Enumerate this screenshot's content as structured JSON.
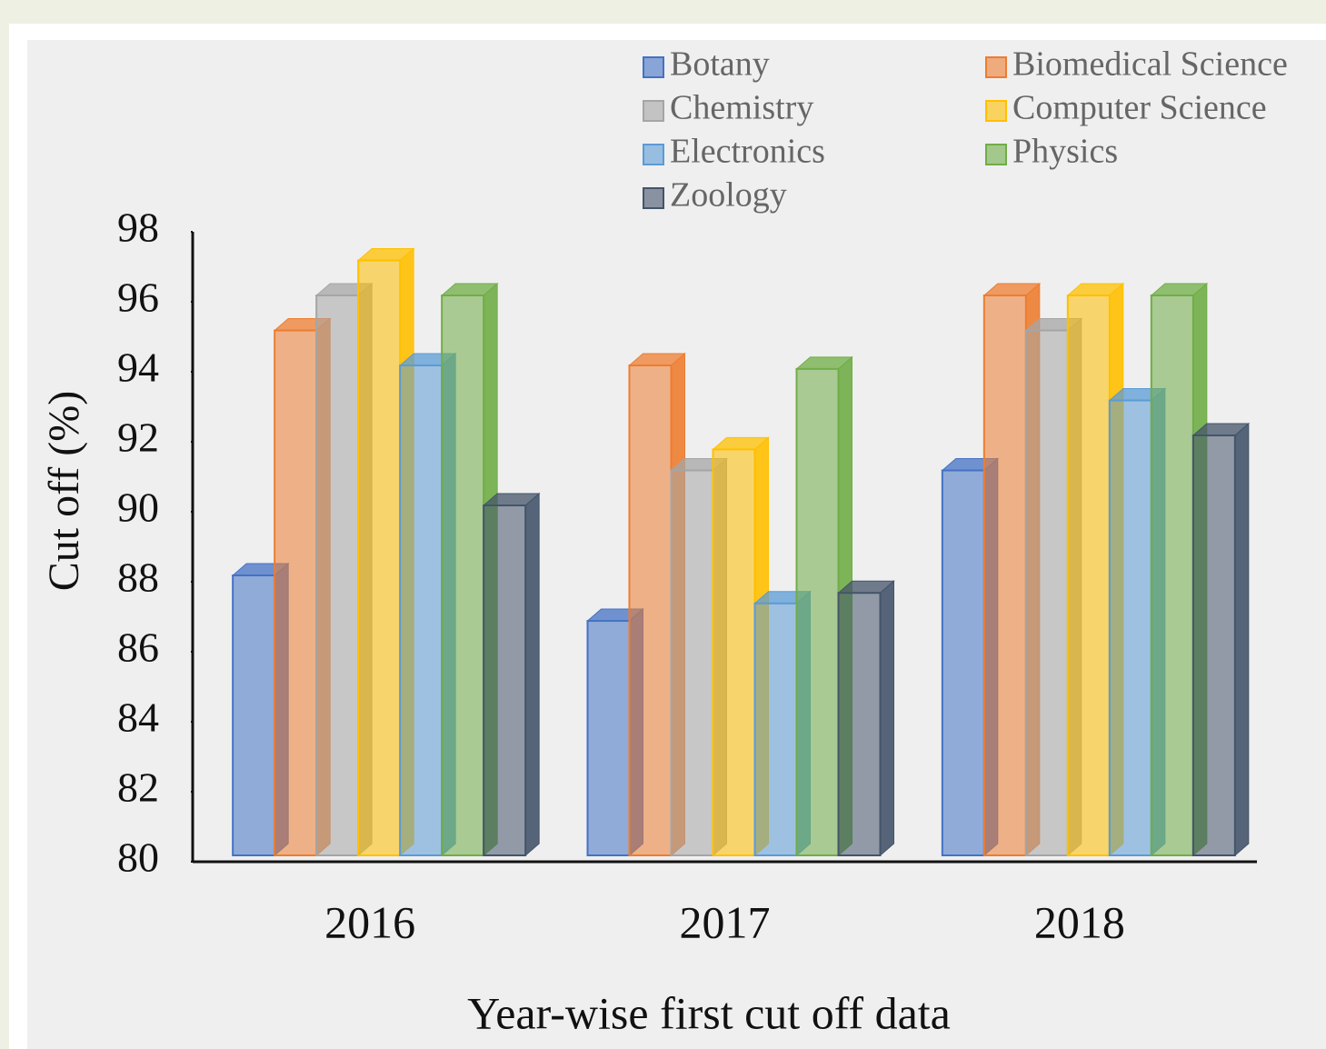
{
  "chart_data": {
    "type": "bar3d",
    "xlabel": "Year-wise  first cut off data",
    "ylabel": "Cut off (%)",
    "categories": [
      "2016",
      "2017",
      "2018"
    ],
    "series": [
      {
        "name": "Botany",
        "color": "#4472c4",
        "values": [
          88,
          86.7,
          91
        ]
      },
      {
        "name": "Biomedical Science",
        "color": "#ed7d31",
        "values": [
          95,
          94,
          96
        ]
      },
      {
        "name": "Chemistry",
        "color": "#a5a5a5",
        "values": [
          96,
          91,
          95
        ]
      },
      {
        "name": "Computer Science",
        "color": "#ffc000",
        "values": [
          97,
          91.6,
          96
        ]
      },
      {
        "name": "Electronics",
        "color": "#5b9bd5",
        "values": [
          94,
          87.2,
          93
        ]
      },
      {
        "name": "Physics",
        "color": "#70ad47",
        "values": [
          96,
          93.9,
          96
        ]
      },
      {
        "name": "Zoology",
        "color": "#44546a",
        "values": [
          90,
          87.5,
          92
        ]
      }
    ],
    "ylim": [
      80,
      98
    ],
    "yticks": [
      80,
      82,
      84,
      86,
      88,
      90,
      92,
      94,
      96,
      98
    ],
    "legend": "top-right"
  }
}
